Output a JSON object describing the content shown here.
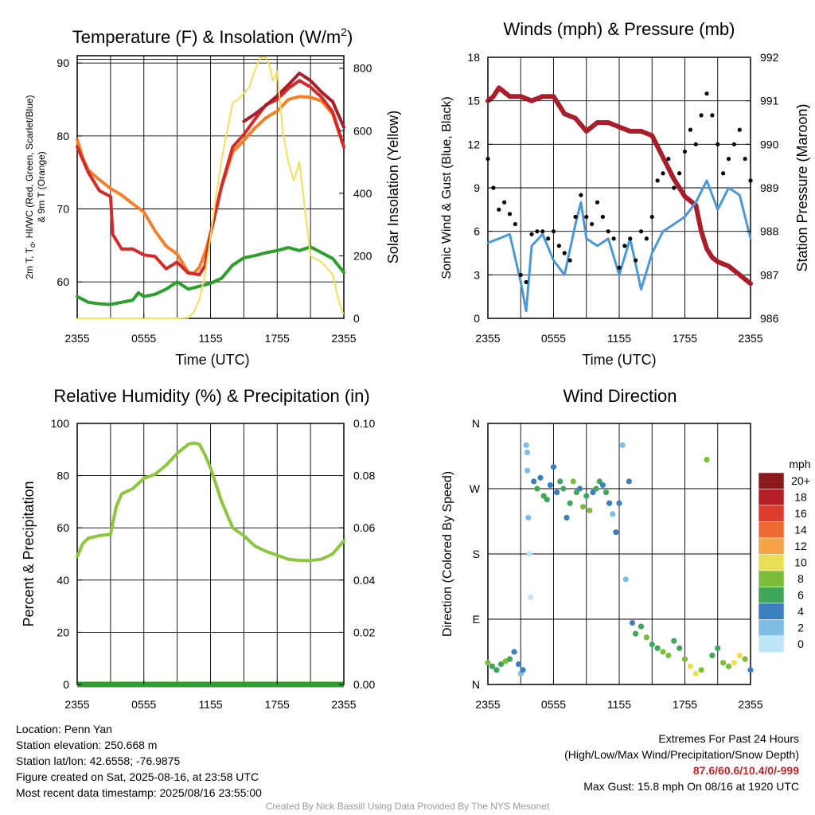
{
  "panels": {
    "temperature": {
      "title": "Temperature (F) & Insolation (W/m",
      "title_sup": "2",
      "title_end": ")",
      "ylabel_left_line1": "2m T, T",
      "ylabel_left_sub": "d",
      "ylabel_left_rest": ", HI/WC (Red, Green, Scarlet/Blue)",
      "ylabel_left_line2": "& 9m T (Orange)",
      "ylabel_right": "Solar Insolation (Yellow)",
      "xlabel": "Time (UTC)"
    },
    "winds": {
      "title": "Winds (mph) & Pressure (mb)",
      "ylabel_left": "Sonic Wind & Gust (Blue, Black)",
      "ylabel_right": "Station Pressure (Maroon)",
      "xlabel": "Time (UTC)"
    },
    "humidity": {
      "title": "Relative Humidity (%) & Precipitation (in)",
      "ylabel_left": "Percent & Precipitation"
    },
    "direction": {
      "title": "Wind Direction",
      "ylabel_left": "Direction (Colored By Speed)",
      "legend_title": "mph"
    }
  },
  "info": {
    "location": "Location: Penn Yan",
    "elevation": "Station elevation: 250.668 m",
    "latlon": "Station lat/lon: 42.6558; -76.9875",
    "created": "Figure created on Sat, 2025-08-16, at 23:58 UTC",
    "recent": "Most recent data timestamp: 2025/08/16 23:55:00",
    "extremes_title": "Extremes For Past 24 Hours",
    "extremes_subtitle": "(High/Low/Max Wind/Precipitation/Snow Depth)",
    "extremes_values": "87.6/60.6/10.4/0/-999",
    "max_gust": "Max Gust: 15.8 mph On 08/16 at 1920 UTC"
  },
  "credit": "Created By Nick Bassill Using Data Provided By The NYS Mesonet",
  "chart_data": [
    {
      "type": "line",
      "title": "Temperature (F) & Insolation (W/m2)",
      "xlabel": "Time (UTC)",
      "ylabel": "2m T, Td, HI/WC (Red, Green, Scarlet/Blue) & 9m T (Orange)",
      "y2label": "Solar Insolation (Yellow)",
      "x_ticks": [
        "2355",
        "0555",
        "1155",
        "1755",
        "2355"
      ],
      "x_hours": [
        0,
        24
      ],
      "ylim": [
        55,
        91
      ],
      "yticks": [
        60,
        70,
        80,
        90
      ],
      "y2lim": [
        0,
        840
      ],
      "y2ticks": [
        0,
        200,
        400,
        600,
        800
      ],
      "series": [
        {
          "color": "#2e9e2e",
          "axis": "left",
          "x": [
            0,
            1,
            2,
            3,
            4,
            5,
            5.5,
            6,
            7,
            8,
            9,
            10,
            11,
            12,
            13,
            14,
            15,
            16,
            17,
            18,
            19,
            20,
            21,
            22,
            23,
            24
          ],
          "y": [
            58,
            57.2,
            57,
            56.9,
            57.2,
            57.5,
            58.5,
            58,
            58.3,
            59,
            60,
            59,
            59.4,
            59.8,
            60.5,
            62.3,
            63.3,
            63.6,
            64,
            64.3,
            64.7,
            64.3,
            64.8,
            64,
            63.2,
            61.3
          ]
        },
        {
          "color": "#f4812a",
          "axis": "left",
          "x": [
            0,
            0.5,
            1,
            2,
            3,
            4,
            5,
            6,
            7,
            8,
            9,
            10,
            10.5,
            11,
            11.5,
            12,
            13,
            14,
            15,
            16,
            17,
            18,
            19,
            20,
            21,
            22,
            23,
            24
          ],
          "y": [
            79.5,
            77,
            75.3,
            74,
            72.8,
            71.9,
            70.7,
            69.6,
            67,
            64.9,
            63.8,
            61.3,
            61.2,
            62,
            64,
            66.6,
            73.1,
            77.8,
            79.4,
            81.1,
            82.5,
            83.4,
            85,
            85.4,
            85.3,
            84.8,
            83,
            78.5
          ]
        },
        {
          "color": "#d42a2a",
          "axis": "left",
          "x": [
            0,
            1,
            2,
            3,
            3.2,
            4,
            5,
            6,
            7,
            8,
            9,
            10,
            11,
            11.5,
            12,
            13,
            14,
            15,
            16,
            17,
            18,
            19,
            20,
            21,
            22,
            23,
            24
          ],
          "y": [
            78.5,
            75,
            72.5,
            71.7,
            66.5,
            64.5,
            64.5,
            63.7,
            63.5,
            61.8,
            62.7,
            61.2,
            61,
            62.2,
            66.6,
            73.2,
            78.5,
            80.2,
            82.3,
            84.3,
            85,
            86.5,
            87.6,
            86.7,
            85.3,
            83.3,
            78.5
          ]
        },
        {
          "color": "#a81e2a",
          "axis": "left",
          "x": [
            15,
            16,
            17,
            18,
            19,
            20,
            21,
            22,
            23,
            24
          ],
          "y": [
            82,
            83,
            84.2,
            85.5,
            87,
            88.6,
            87.6,
            86,
            84.7,
            81.2
          ]
        },
        {
          "color": "#f5de5a",
          "axis": "right",
          "x": [
            0,
            3,
            6,
            9,
            10,
            10.5,
            11,
            11.5,
            12,
            12.5,
            13,
            14,
            14.5,
            15,
            15.5,
            16,
            16.5,
            17,
            17.3,
            17.6,
            18,
            18.5,
            19,
            19.5,
            20,
            20.5,
            21,
            22,
            23,
            23.5,
            24
          ],
          "y": [
            0,
            0,
            0,
            0,
            2,
            20,
            60,
            140,
            260,
            390,
            510,
            690,
            700,
            720,
            740,
            795,
            835,
            835,
            810,
            760,
            790,
            600,
            500,
            440,
            500,
            350,
            200,
            180,
            140,
            60,
            10
          ]
        }
      ]
    },
    {
      "type": "line",
      "title": "Winds (mph) & Pressure (mb)",
      "xlabel": "Time (UTC)",
      "ylabel": "Sonic Wind & Gust (Blue, Black)",
      "y2label": "Station Pressure (Maroon)",
      "x_ticks": [
        "2355",
        "0555",
        "1155",
        "1755",
        "2355"
      ],
      "x_hours": [
        0,
        24
      ],
      "ylim": [
        0,
        18
      ],
      "yticks": [
        0,
        3,
        6,
        9,
        12,
        15,
        18
      ],
      "y2lim": [
        986,
        992
      ],
      "y2ticks": [
        986,
        987,
        988,
        989,
        990,
        991,
        992
      ],
      "series": [
        {
          "color": "#a81e2a",
          "axis": "right",
          "x": [
            0,
            0.5,
            1,
            2,
            3,
            4,
            5,
            6,
            7,
            8,
            9,
            10,
            11,
            12,
            13,
            14,
            15,
            16,
            17,
            18,
            19,
            19.5,
            20,
            20.5,
            21,
            22,
            23,
            24
          ],
          "y": [
            991,
            991.1,
            991.3,
            991.1,
            991.1,
            991,
            991.1,
            991.1,
            990.7,
            990.6,
            990.3,
            990.5,
            990.5,
            990.4,
            990.3,
            990.3,
            990.2,
            989.7,
            989.2,
            988.8,
            988.6,
            988,
            987.6,
            987.4,
            987.3,
            987.2,
            987,
            986.8
          ]
        },
        {
          "color": "#4c98d6",
          "axis": "left",
          "x": [
            0,
            1,
            2,
            3,
            3.5,
            4,
            5,
            6,
            7,
            8,
            8.5,
            9,
            10,
            11,
            12,
            13,
            14,
            15,
            16,
            17,
            18,
            19,
            20,
            21,
            22,
            23,
            24
          ],
          "y": [
            5.2,
            5.5,
            5.8,
            2.5,
            0.5,
            5,
            5.8,
            4,
            3,
            6.5,
            8,
            5.5,
            5,
            5.5,
            3,
            5.5,
            2,
            4.5,
            6,
            6.5,
            7,
            8,
            9.5,
            7.5,
            9,
            8.5,
            5.5
          ]
        },
        {
          "color": "#000000",
          "axis": "left",
          "kind": "points",
          "x": [
            0,
            0.5,
            1,
            1.5,
            2,
            2.5,
            3,
            3.5,
            4,
            4.5,
            5,
            5.5,
            6,
            6.5,
            7,
            7.5,
            8,
            8.5,
            9,
            9.5,
            10,
            10.5,
            11,
            11.5,
            12,
            12.5,
            13,
            13.5,
            14,
            14.5,
            15,
            15.5,
            16,
            16.5,
            17,
            17.5,
            18,
            18.5,
            19,
            19.5,
            20,
            20.5,
            21,
            21.5,
            22,
            22.5,
            23,
            23.5,
            24
          ],
          "y": [
            11,
            9,
            7.5,
            8,
            7.2,
            6.5,
            3,
            2.5,
            5.8,
            6,
            6,
            5.5,
            6,
            5,
            4.5,
            4,
            7,
            8.5,
            7,
            6.5,
            8,
            7,
            6,
            5.5,
            3.5,
            5,
            5.5,
            4,
            6,
            5.5,
            7,
            9.5,
            10,
            11,
            9,
            10,
            11.5,
            13,
            12,
            14,
            15.5,
            14,
            12,
            10,
            11,
            12,
            13,
            11,
            9.5
          ]
        }
      ]
    },
    {
      "type": "line",
      "title": "Relative Humidity (%) & Precipitation (in)",
      "ylabel": "Percent & Precipitation",
      "x_ticks": [
        "2355",
        "0555",
        "1155",
        "1755",
        "2355"
      ],
      "x_hours": [
        0,
        24
      ],
      "ylim": [
        0,
        100
      ],
      "yticks": [
        0,
        20,
        40,
        60,
        80,
        100
      ],
      "y2lim": [
        0,
        0.1
      ],
      "y2ticks": [
        "0.00",
        "0.02",
        "0.04",
        "0.06",
        "0.08",
        "0.10"
      ],
      "series": [
        {
          "color": "#8cc63f",
          "axis": "left",
          "x": [
            0,
            0.5,
            1,
            2,
            3,
            3.5,
            4,
            5,
            6,
            7,
            8,
            9,
            10,
            10.5,
            11,
            11.5,
            12,
            13,
            14,
            15,
            16,
            17,
            18,
            19,
            20,
            21,
            22,
            23,
            24
          ],
          "y": [
            49,
            54,
            56,
            57,
            57.5,
            68,
            73,
            75,
            79,
            80.5,
            84,
            88.5,
            92,
            92.5,
            92,
            88,
            83,
            70,
            60,
            57,
            53,
            51,
            49.5,
            48,
            47.5,
            47.5,
            48,
            50,
            55
          ]
        },
        {
          "color": "#2e9e2e",
          "axis": "right",
          "x": [
            0,
            24
          ],
          "y": [
            0,
            0
          ]
        }
      ]
    },
    {
      "type": "scatter",
      "title": "Wind Direction",
      "ylabel": "Direction (Colored By Speed)",
      "x_ticks": [
        "2355",
        "0555",
        "1155",
        "1755",
        "2355"
      ],
      "x_hours": [
        0,
        24
      ],
      "ylim": [
        0,
        360
      ],
      "yticks": [
        "N",
        "E",
        "S",
        "W",
        "N"
      ],
      "color_scale": {
        "title": "mph",
        "labels": [
          "20+",
          "18",
          "16",
          "14",
          "12",
          "10",
          "8",
          "6",
          "4",
          "2",
          "0"
        ],
        "colors": [
          "#8b1a1a",
          "#b81f24",
          "#dc3b2e",
          "#ee6a32",
          "#f6a24a",
          "#e9de55",
          "#7cbd3c",
          "#3fa65a",
          "#3b7fc0",
          "#7dbde6",
          "#bfe6f7"
        ]
      },
      "points": {
        "x": [
          0,
          0.4,
          0.8,
          1.2,
          1.6,
          2,
          2.4,
          2.8,
          3,
          3.2,
          3.5,
          3.6,
          3.6,
          3.7,
          3.8,
          3.9,
          4.2,
          4.5,
          4.8,
          5.1,
          5.4,
          5.7,
          6,
          6.3,
          6.6,
          6.9,
          7.2,
          7.5,
          7.8,
          8.1,
          8.4,
          8.7,
          9,
          9.3,
          9.6,
          9.9,
          10.2,
          10.5,
          10.8,
          11.1,
          11.4,
          11.7,
          12,
          12.3,
          12.6,
          12.9,
          13.2,
          13.5,
          14,
          14.5,
          15,
          15.5,
          16,
          16.5,
          17,
          17.5,
          18,
          18.5,
          19,
          19.5,
          20,
          20.5,
          21,
          21.5,
          22,
          22.5,
          23,
          23.5,
          24
        ],
        "y": [
          30,
          25,
          20,
          28,
          32,
          35,
          45,
          28,
          15,
          20,
          330,
          320,
          295,
          230,
          180,
          120,
          280,
          270,
          285,
          260,
          255,
          275,
          300,
          265,
          280,
          270,
          230,
          250,
          280,
          265,
          270,
          245,
          260,
          240,
          265,
          270,
          280,
          275,
          265,
          250,
          235,
          210,
          250,
          330,
          145,
          280,
          85,
          70,
          80,
          65,
          55,
          50,
          45,
          40,
          60,
          50,
          35,
          25,
          15,
          20,
          310,
          40,
          50,
          30,
          25,
          30,
          40,
          35,
          20
        ],
        "speed": [
          7,
          6,
          5,
          6,
          7,
          6,
          4,
          3,
          2,
          3,
          2,
          2,
          1,
          1,
          0,
          0,
          4,
          5,
          4,
          6,
          5,
          4,
          3,
          4,
          5,
          6,
          4,
          5,
          7,
          5,
          3,
          7,
          6,
          8,
          4,
          5,
          6,
          4,
          5,
          3,
          2,
          3,
          4,
          2,
          2,
          4,
          4,
          5,
          6,
          7,
          6,
          5,
          8,
          7,
          6,
          6,
          7,
          9,
          10,
          8,
          7,
          6,
          5,
          7,
          8,
          9,
          10,
          7,
          4
        ]
      }
    }
  ]
}
